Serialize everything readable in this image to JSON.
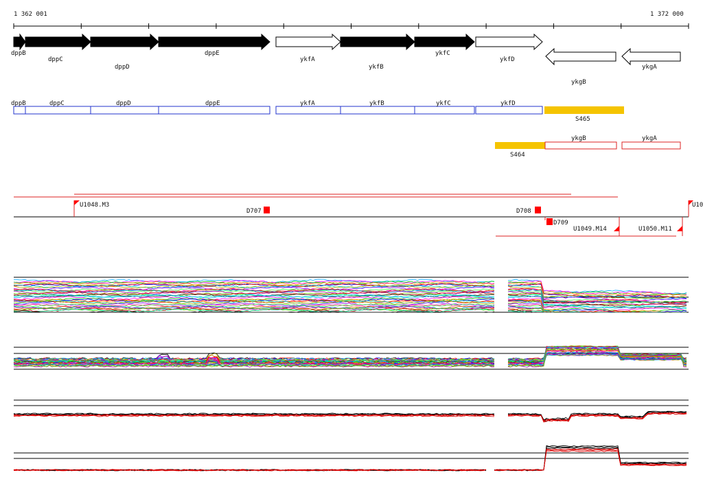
{
  "ruler": {
    "start_label": "1 362 001",
    "end_label": "1 372 000"
  },
  "colors": {
    "gene_fill": "#000000",
    "gene_outline": "#000000",
    "operon_blue": "#2233cc",
    "operon_red": "#dd2222",
    "segment_gold": "#f5c400",
    "probe_red": "#ff0000",
    "line_black": "#000000"
  },
  "genes": [
    {
      "name": "dppB",
      "strand": "+",
      "filled": true
    },
    {
      "name": "dppC",
      "strand": "+",
      "filled": true
    },
    {
      "name": "dppD",
      "strand": "+",
      "filled": true
    },
    {
      "name": "dppE",
      "strand": "+",
      "filled": true
    },
    {
      "name": "ykfA",
      "strand": "+",
      "filled": false
    },
    {
      "name": "ykfB",
      "strand": "+",
      "filled": true
    },
    {
      "name": "ykfC",
      "strand": "+",
      "filled": true
    },
    {
      "name": "ykfD",
      "strand": "+",
      "filled": false
    },
    {
      "name": "ykgB",
      "strand": "-",
      "filled": false
    },
    {
      "name": "ykgA",
      "strand": "-",
      "filled": false
    }
  ],
  "blue_units": [
    "dppB",
    "dppC",
    "dppD",
    "dppE",
    "ykfA",
    "ykfB",
    "ykfC",
    "ykfD"
  ],
  "segments": [
    "S465",
    "S464"
  ],
  "red_units": [
    "ykgB",
    "ykgA"
  ],
  "features": {
    "u1048": "U1048.M3",
    "d707": "D707",
    "d708": "D708",
    "d709": "D709",
    "u1049": "U1049.M14",
    "u1050": "U1050.M11",
    "u_edge": "U10"
  }
}
